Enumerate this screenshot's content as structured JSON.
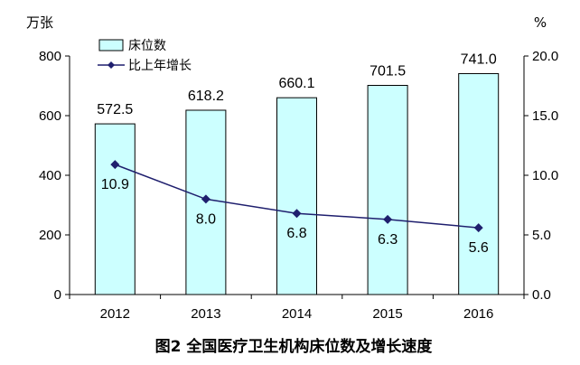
{
  "chart_data": {
    "type": "bar",
    "title": "图2 全国医疗卫生机构床位数及增长速度",
    "left_unit": "万张",
    "right_unit": "%",
    "categories": [
      "2012",
      "2013",
      "2014",
      "2015",
      "2016"
    ],
    "series": [
      {
        "name": "床位数",
        "type": "bar",
        "axis": "left",
        "values": [
          572.5,
          618.2,
          660.1,
          701.5,
          741.0
        ],
        "labels": [
          "572.5",
          "618.2",
          "660.1",
          "701.5",
          "741.0"
        ],
        "color": "#ccffff",
        "stroke": "#000000"
      },
      {
        "name": "比上年增长",
        "type": "line",
        "axis": "right",
        "values": [
          10.9,
          8.0,
          6.8,
          6.3,
          5.6
        ],
        "labels": [
          "10.9",
          "8.0",
          "6.8",
          "6.3",
          "5.6"
        ],
        "color": "#1f1f6e"
      }
    ],
    "y_left": {
      "min": 0,
      "max": 800,
      "ticks": [
        "0",
        "200",
        "400",
        "600",
        "800"
      ]
    },
    "y_right": {
      "min": 0,
      "max": 20,
      "ticks": [
        "0.0",
        "5.0",
        "10.0",
        "15.0",
        "20.0"
      ]
    },
    "grid": false,
    "legend_position": "top-left"
  }
}
